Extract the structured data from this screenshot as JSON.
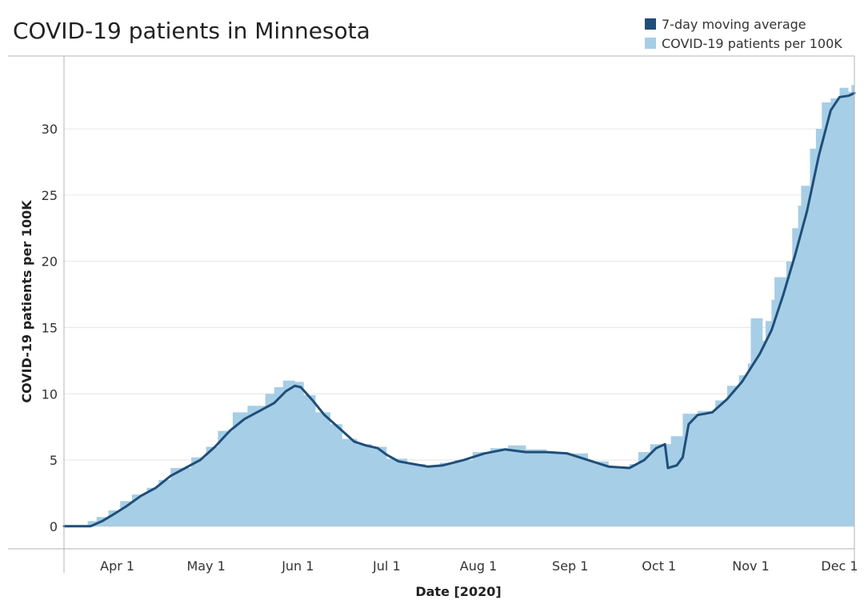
{
  "chart_data": {
    "type": "area",
    "title": "COVID-19 patients in Minnesota",
    "xlabel": "Date [2020]",
    "ylabel": "COVID-19 patients per 100K",
    "x_start": "2020-03-14",
    "x_end": "2020-12-06",
    "ylim": [
      -1.7,
      35.5
    ],
    "yticks": [
      0,
      5,
      10,
      15,
      20,
      25,
      30
    ],
    "xticks": [
      {
        "label": "Apr 1",
        "date": "2020-04-01"
      },
      {
        "label": "May 1",
        "date": "2020-05-01"
      },
      {
        "label": "Jun 1",
        "date": "2020-06-01"
      },
      {
        "label": "Jul 1",
        "date": "2020-07-01"
      },
      {
        "label": "Aug 1",
        "date": "2020-08-01"
      },
      {
        "label": "Sep 1",
        "date": "2020-09-01"
      },
      {
        "label": "Oct 1",
        "date": "2020-10-01"
      },
      {
        "label": "Nov 1",
        "date": "2020-11-01"
      },
      {
        "label": "Dec 1",
        "date": "2020-12-01"
      }
    ],
    "grid": true,
    "legend_position": "top-right",
    "series": [
      {
        "name": "7-day moving average",
        "color": "#1f4e79",
        "style": "line",
        "points": [
          [
            "2020-03-14",
            0
          ],
          [
            "2020-03-23",
            0
          ],
          [
            "2020-03-27",
            0.4
          ],
          [
            "2020-03-30",
            0.8
          ],
          [
            "2020-04-04",
            1.5
          ],
          [
            "2020-04-09",
            2.3
          ],
          [
            "2020-04-14",
            2.9
          ],
          [
            "2020-04-19",
            3.8
          ],
          [
            "2020-04-24",
            4.4
          ],
          [
            "2020-04-29",
            5.0
          ],
          [
            "2020-05-04",
            6.0
          ],
          [
            "2020-05-09",
            7.2
          ],
          [
            "2020-05-14",
            8.1
          ],
          [
            "2020-05-19",
            8.7
          ],
          [
            "2020-05-24",
            9.3
          ],
          [
            "2020-05-28",
            10.2
          ],
          [
            "2020-05-31",
            10.6
          ],
          [
            "2020-06-02",
            10.5
          ],
          [
            "2020-06-06",
            9.5
          ],
          [
            "2020-06-10",
            8.4
          ],
          [
            "2020-06-15",
            7.4
          ],
          [
            "2020-06-20",
            6.4
          ],
          [
            "2020-06-24",
            6.1
          ],
          [
            "2020-06-28",
            5.9
          ],
          [
            "2020-07-01",
            5.4
          ],
          [
            "2020-07-05",
            4.9
          ],
          [
            "2020-07-10",
            4.7
          ],
          [
            "2020-07-15",
            4.5
          ],
          [
            "2020-07-20",
            4.6
          ],
          [
            "2020-07-27",
            5.0
          ],
          [
            "2020-08-03",
            5.5
          ],
          [
            "2020-08-10",
            5.8
          ],
          [
            "2020-08-17",
            5.6
          ],
          [
            "2020-08-24",
            5.6
          ],
          [
            "2020-08-31",
            5.5
          ],
          [
            "2020-09-07",
            5.0
          ],
          [
            "2020-09-14",
            4.5
          ],
          [
            "2020-09-21",
            4.4
          ],
          [
            "2020-09-26",
            5.0
          ],
          [
            "2020-09-30",
            5.9
          ],
          [
            "2020-10-03",
            6.2
          ],
          [
            "2020-10-04",
            4.4
          ],
          [
            "2020-10-07",
            4.6
          ],
          [
            "2020-10-09",
            5.2
          ],
          [
            "2020-10-11",
            7.7
          ],
          [
            "2020-10-14",
            8.4
          ],
          [
            "2020-10-19",
            8.6
          ],
          [
            "2020-10-24",
            9.6
          ],
          [
            "2020-10-29",
            10.9
          ],
          [
            "2020-11-04",
            13.0
          ],
          [
            "2020-11-08",
            14.8
          ],
          [
            "2020-11-12",
            17.5
          ],
          [
            "2020-11-16",
            20.5
          ],
          [
            "2020-11-20",
            23.8
          ],
          [
            "2020-11-24",
            28.0
          ],
          [
            "2020-11-28",
            31.4
          ],
          [
            "2020-12-01",
            32.4
          ],
          [
            "2020-12-04",
            32.5
          ],
          [
            "2020-12-06",
            32.7
          ]
        ]
      },
      {
        "name": "COVID-19 patients per 100K",
        "color": "#a6cee6",
        "style": "stepped-area",
        "points": [
          [
            "2020-03-14",
            0
          ],
          [
            "2020-03-22",
            0.4
          ],
          [
            "2020-03-25",
            0.7
          ],
          [
            "2020-03-29",
            1.2
          ],
          [
            "2020-04-02",
            1.9
          ],
          [
            "2020-04-06",
            2.4
          ],
          [
            "2020-04-11",
            2.9
          ],
          [
            "2020-04-15",
            3.5
          ],
          [
            "2020-04-19",
            4.4
          ],
          [
            "2020-04-26",
            5.2
          ],
          [
            "2020-05-01",
            6.0
          ],
          [
            "2020-05-05",
            7.2
          ],
          [
            "2020-05-10",
            8.6
          ],
          [
            "2020-05-15",
            9.1
          ],
          [
            "2020-05-21",
            10.0
          ],
          [
            "2020-05-24",
            10.5
          ],
          [
            "2020-05-27",
            11.0
          ],
          [
            "2020-05-31",
            10.9
          ],
          [
            "2020-06-03",
            9.9
          ],
          [
            "2020-06-07",
            8.6
          ],
          [
            "2020-06-12",
            7.7
          ],
          [
            "2020-06-16",
            6.6
          ],
          [
            "2020-06-21",
            6.2
          ],
          [
            "2020-06-26",
            6.0
          ],
          [
            "2020-07-01",
            5.1
          ],
          [
            "2020-07-08",
            4.7
          ],
          [
            "2020-07-14",
            4.5
          ],
          [
            "2020-07-19",
            4.8
          ],
          [
            "2020-07-24",
            5.0
          ],
          [
            "2020-07-30",
            5.6
          ],
          [
            "2020-08-05",
            5.9
          ],
          [
            "2020-08-11",
            6.1
          ],
          [
            "2020-08-17",
            5.8
          ],
          [
            "2020-08-24",
            5.6
          ],
          [
            "2020-08-31",
            5.5
          ],
          [
            "2020-09-07",
            4.9
          ],
          [
            "2020-09-14",
            4.5
          ],
          [
            "2020-09-21",
            4.7
          ],
          [
            "2020-09-24",
            5.6
          ],
          [
            "2020-09-28",
            6.2
          ],
          [
            "2020-10-05",
            6.8
          ],
          [
            "2020-10-09",
            8.5
          ],
          [
            "2020-10-14",
            8.7
          ],
          [
            "2020-10-20",
            9.5
          ],
          [
            "2020-10-24",
            10.6
          ],
          [
            "2020-10-28",
            11.4
          ],
          [
            "2020-10-31",
            12.3
          ],
          [
            "2020-11-01",
            15.7
          ],
          [
            "2020-11-05",
            14.0
          ],
          [
            "2020-11-06",
            15.5
          ],
          [
            "2020-11-08",
            17.1
          ],
          [
            "2020-11-09",
            18.8
          ],
          [
            "2020-11-13",
            20.0
          ],
          [
            "2020-11-15",
            22.5
          ],
          [
            "2020-11-17",
            24.2
          ],
          [
            "2020-11-18",
            25.7
          ],
          [
            "2020-11-21",
            28.5
          ],
          [
            "2020-11-23",
            30.0
          ],
          [
            "2020-11-25",
            32.0
          ],
          [
            "2020-11-28",
            32.3
          ],
          [
            "2020-12-01",
            33.1
          ],
          [
            "2020-12-04",
            32.8
          ],
          [
            "2020-12-05",
            33.3
          ],
          [
            "2020-12-06",
            33.3
          ]
        ]
      }
    ]
  }
}
